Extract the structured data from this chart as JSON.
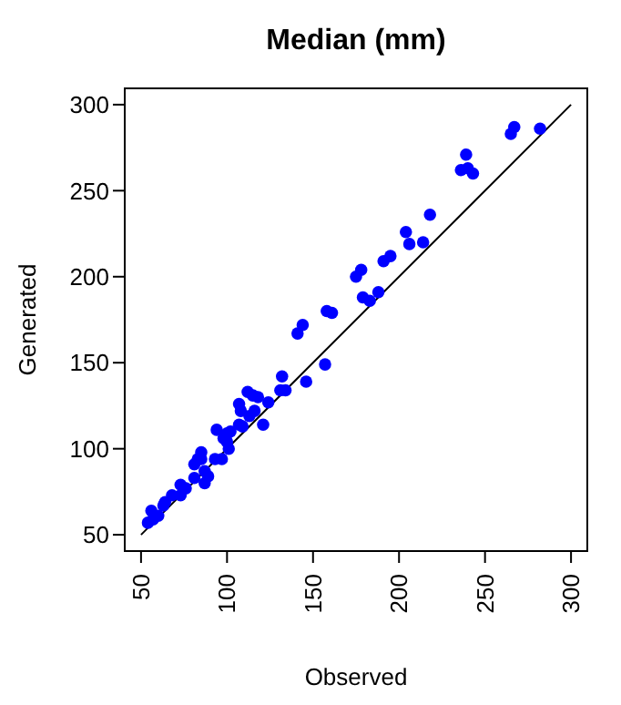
{
  "chart_data": {
    "type": "scatter",
    "title": "Median (mm)",
    "xlabel": "Observed",
    "ylabel": "Generated",
    "xlim": [
      40,
      310
    ],
    "ylim": [
      40,
      310
    ],
    "xticks": [
      50,
      100,
      150,
      200,
      250,
      300
    ],
    "yticks": [
      50,
      100,
      150,
      200,
      250,
      300
    ],
    "series": [
      {
        "color": "#0000ff",
        "marker": "circle",
        "x": [
          282,
          267,
          265,
          239,
          236,
          240,
          243,
          218,
          204,
          206,
          214,
          191,
          195,
          178,
          175,
          179,
          183,
          188,
          158,
          161,
          141,
          144,
          157,
          146,
          132,
          131,
          134,
          124,
          112,
          115,
          118,
          107,
          108,
          116,
          113,
          121,
          107,
          109,
          102,
          98,
          100,
          94,
          100,
          101,
          97,
          93,
          85,
          83,
          81,
          85,
          87,
          89,
          87,
          81,
          76,
          73,
          73,
          68,
          64,
          63,
          56,
          60,
          54,
          57
        ],
        "values": [
          286,
          287,
          283,
          271,
          262,
          263,
          260,
          236,
          226,
          219,
          220,
          209,
          212,
          204,
          200,
          188,
          186,
          191,
          180,
          179,
          167,
          172,
          149,
          139,
          142,
          134,
          134,
          127,
          133,
          131,
          130,
          126,
          122,
          122,
          119,
          114,
          114,
          113,
          110,
          106,
          109,
          111,
          104,
          100,
          94,
          94,
          98,
          94,
          91,
          94,
          87,
          84,
          80,
          83,
          77,
          79,
          73,
          73,
          69,
          67,
          64,
          61,
          57,
          59
        ]
      },
      {
        "type": "line",
        "color": "#000000",
        "marker": "none",
        "line_style": "solid",
        "x": [
          50,
          300
        ],
        "values": [
          50,
          300
        ]
      }
    ]
  }
}
